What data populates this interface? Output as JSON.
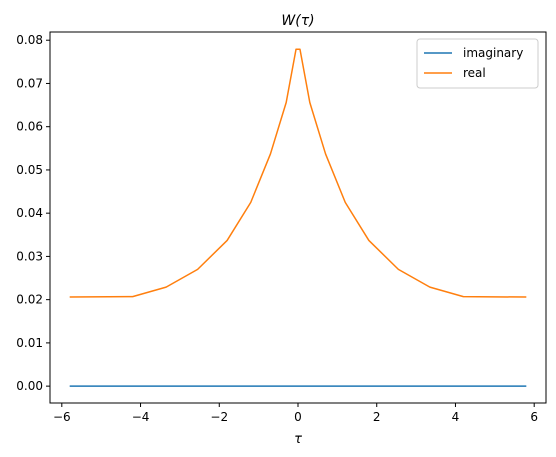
{
  "chart_data": {
    "type": "line",
    "title": "W(τ)",
    "xlabel": "τ",
    "ylabel": "",
    "xlim": [
      -6.3,
      6.3
    ],
    "ylim": [
      -0.0039,
      0.0819
    ],
    "x_ticks": [
      -6,
      -4,
      -2,
      0,
      2,
      4,
      6
    ],
    "x_tick_labels": [
      "−6",
      "−4",
      "−2",
      "0",
      "2",
      "4",
      "6"
    ],
    "y_ticks": [
      0.0,
      0.01,
      0.02,
      0.03,
      0.04,
      0.05,
      0.06,
      0.07,
      0.08
    ],
    "y_tick_labels": [
      "0.00",
      "0.01",
      "0.02",
      "0.03",
      "0.04",
      "0.05",
      "0.06",
      "0.07",
      "0.08"
    ],
    "grid": false,
    "legend_placement": "top-right",
    "series": [
      {
        "name": "imaginary",
        "color": "#1f77b4",
        "x": [
          -5.8,
          5.8
        ],
        "y": [
          0.0,
          0.0
        ]
      },
      {
        "name": "real",
        "color": "#ff7f0e",
        "x": [
          -5.8,
          -4.2,
          -3.35,
          -2.55,
          -1.8,
          -1.2,
          -0.7,
          -0.3,
          -0.05,
          0.05,
          0.3,
          0.7,
          1.2,
          1.8,
          2.55,
          3.35,
          4.2,
          5.8
        ],
        "y": [
          0.0206,
          0.0207,
          0.0229,
          0.027,
          0.0337,
          0.0425,
          0.0537,
          0.0656,
          0.0779,
          0.0779,
          0.0656,
          0.0537,
          0.0425,
          0.0337,
          0.027,
          0.0229,
          0.0207,
          0.0206
        ]
      }
    ]
  }
}
